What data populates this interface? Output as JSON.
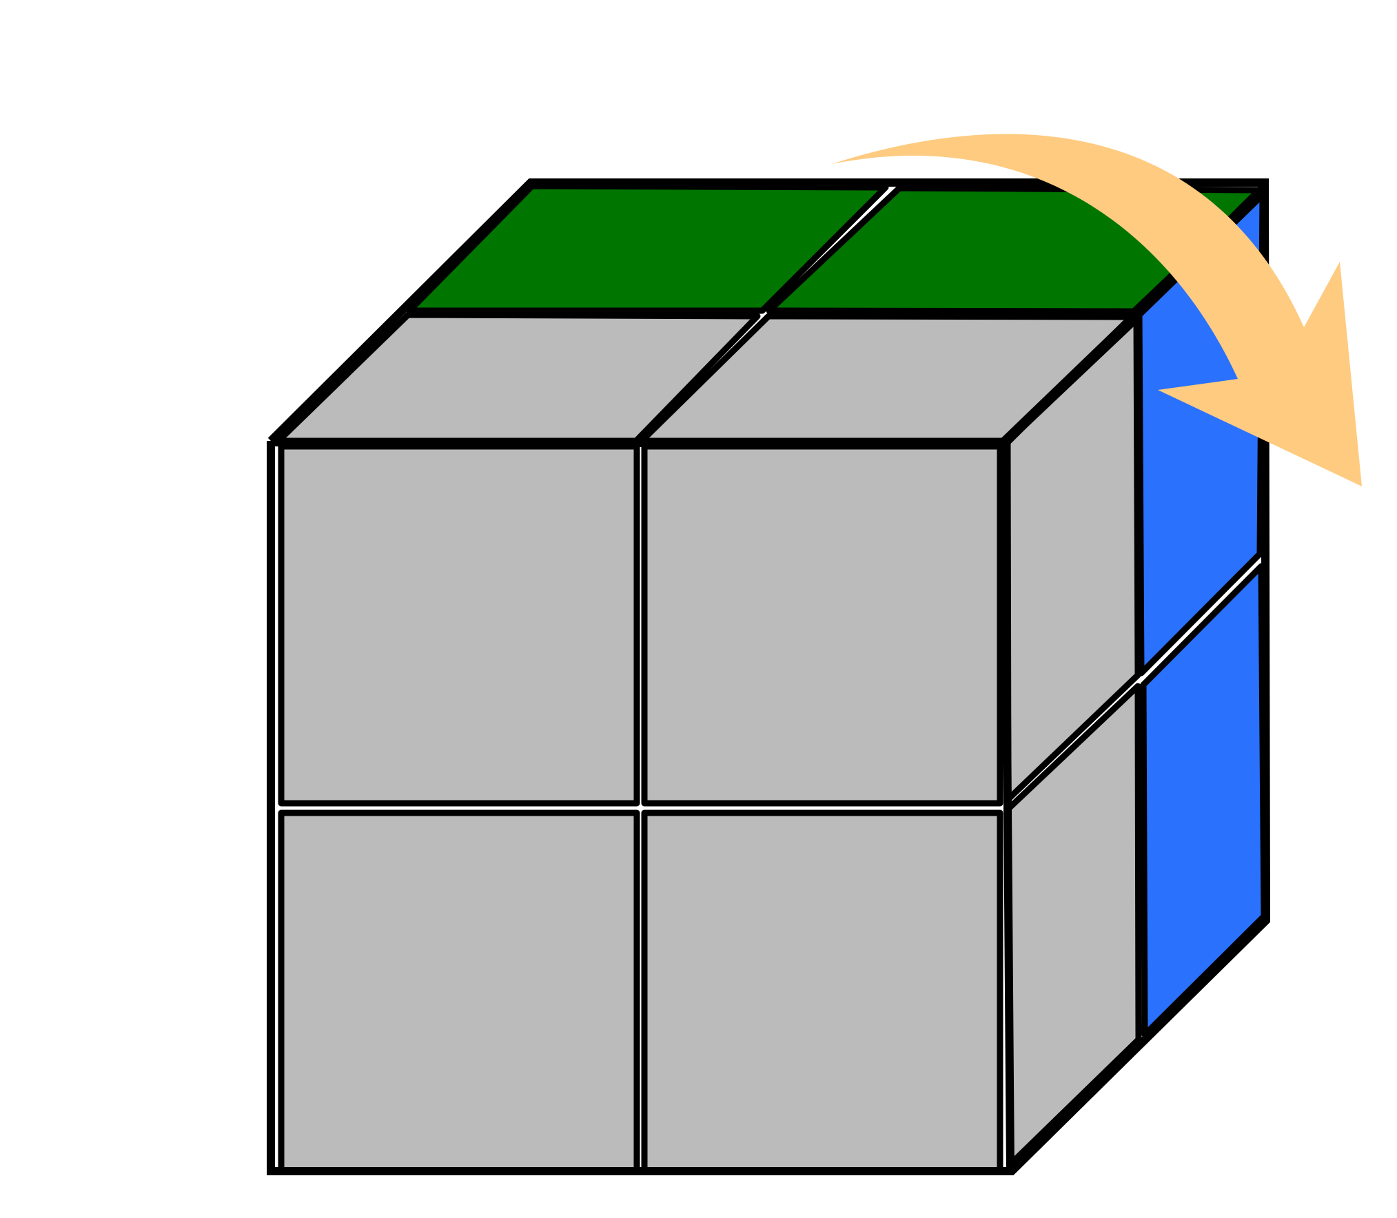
{
  "colors": {
    "background": "#ffffff",
    "outline": "#000000",
    "top_row_back": "#007500",
    "gray": "#bbbbbb",
    "right_back_column": "#2a71fd",
    "arrow": "#fecb80"
  },
  "diagram": {
    "subject": "2x2 cube puzzle",
    "faces": {
      "top": [
        "#007500",
        "#007500",
        "#bbbbbb",
        "#bbbbbb"
      ],
      "front": [
        "#bbbbbb",
        "#bbbbbb",
        "#bbbbbb",
        "#bbbbbb"
      ],
      "right": [
        "#bbbbbb",
        "#bbbbbb"
      ],
      "right_back": [
        "#2a71fd",
        "#2a71fd"
      ]
    },
    "arrow_direction": "clockwise-over-top-to-right"
  }
}
